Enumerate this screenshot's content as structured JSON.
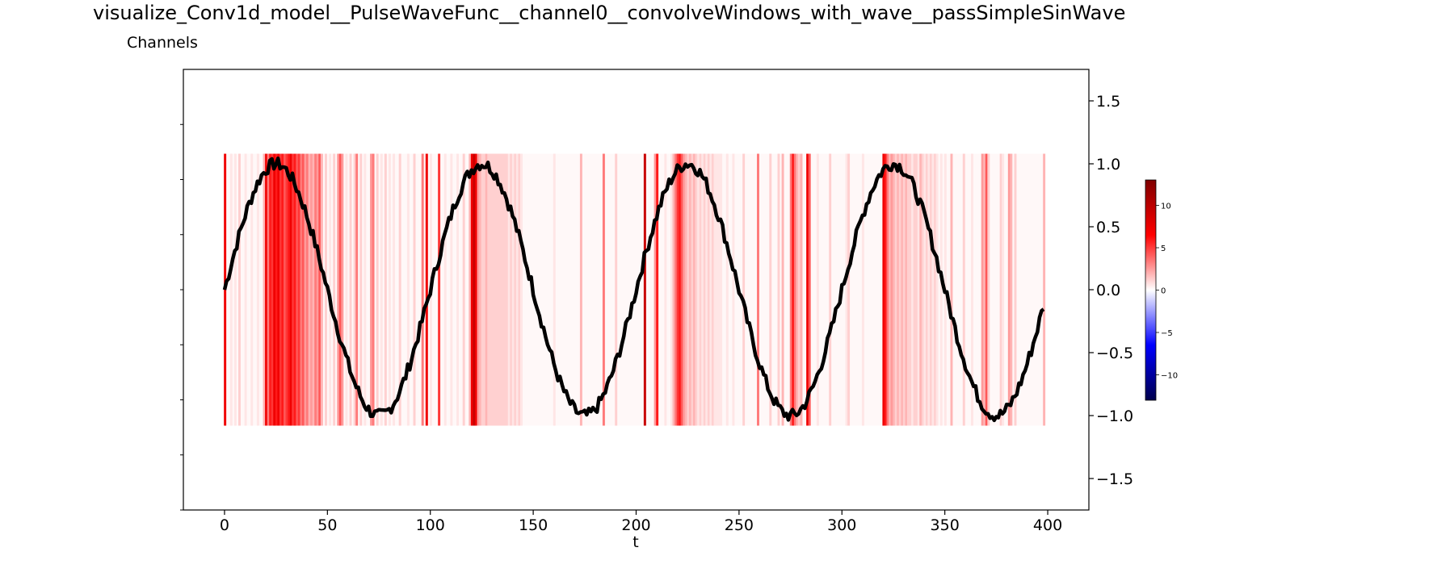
{
  "title": "visualize_Conv1d_model__PulseWaveFunc__channel0__convolveWindows_with_wave__passSimpleSinWave",
  "subtitle": "Channels",
  "chart_data": {
    "type": "line",
    "xlabel": "t",
    "ylabel": "",
    "xlim": [
      -20,
      420
    ],
    "ylim": [
      -1.75,
      1.75
    ],
    "x_ticks": [
      0,
      50,
      100,
      150,
      200,
      250,
      300,
      350,
      400
    ],
    "x_tick_labels": [
      "0",
      "50",
      "100",
      "150",
      "200",
      "250",
      "300",
      "350",
      "400"
    ],
    "y_ticks": [
      1.5,
      1.0,
      0.5,
      0.0,
      -0.5,
      -1.0,
      -1.5
    ],
    "y_tick_labels": [
      "1.5",
      "1.0",
      "0.5",
      "0.0",
      "−0.5",
      "−1.0",
      "−1.5"
    ],
    "y_axis_side": "right",
    "grid": false,
    "line_color": "#000000",
    "signal": {
      "t_start": 0,
      "t_end": 398,
      "period": 100,
      "amplitude": 1.0,
      "noise_amplitude": 0.05
    },
    "heatmap": {
      "colormap": "seismic",
      "y_range": [
        -1.08,
        1.08
      ],
      "x_range": [
        0,
        398
      ],
      "colorbar_ticks": [
        10,
        5,
        0,
        -5,
        -10
      ],
      "colorbar_tick_labels": [
        "10",
        "5",
        "0",
        "−5",
        "−10"
      ],
      "colorbar_range": [
        -13,
        13
      ],
      "activations": [
        [
          0,
          9
        ],
        [
          3,
          1
        ],
        [
          5,
          1
        ],
        [
          7,
          2
        ],
        [
          10,
          1
        ],
        [
          13,
          1
        ],
        [
          16,
          1
        ],
        [
          19,
          3
        ],
        [
          20,
          9
        ],
        [
          21,
          5
        ],
        [
          22,
          8
        ],
        [
          23,
          7
        ],
        [
          24,
          9
        ],
        [
          25,
          8
        ],
        [
          26,
          9
        ],
        [
          27,
          7
        ],
        [
          28,
          8
        ],
        [
          29,
          6
        ],
        [
          30,
          7
        ],
        [
          31,
          8
        ],
        [
          32,
          9
        ],
        [
          33,
          7
        ],
        [
          34,
          8
        ],
        [
          35,
          6
        ],
        [
          36,
          7
        ],
        [
          37,
          5
        ],
        [
          38,
          6
        ],
        [
          39,
          4
        ],
        [
          40,
          5
        ],
        [
          41,
          3
        ],
        [
          42,
          4
        ],
        [
          43,
          3
        ],
        [
          44,
          5
        ],
        [
          45,
          4
        ],
        [
          46,
          6
        ],
        [
          47,
          3
        ],
        [
          49,
          2
        ],
        [
          51,
          1
        ],
        [
          53,
          2
        ],
        [
          55,
          4
        ],
        [
          56,
          6
        ],
        [
          57,
          4
        ],
        [
          59,
          1
        ],
        [
          61,
          2
        ],
        [
          63,
          2
        ],
        [
          64,
          5
        ],
        [
          66,
          2
        ],
        [
          68,
          1
        ],
        [
          71,
          4
        ],
        [
          72,
          5
        ],
        [
          74,
          2
        ],
        [
          76,
          1
        ],
        [
          78,
          2
        ],
        [
          80,
          1
        ],
        [
          82,
          1
        ],
        [
          85,
          2
        ],
        [
          89,
          1
        ],
        [
          92,
          2
        ],
        [
          96,
          5
        ],
        [
          98,
          9
        ],
        [
          100,
          1
        ],
        [
          104,
          7
        ],
        [
          107,
          1
        ],
        [
          110,
          1
        ],
        [
          113,
          1
        ],
        [
          116,
          2
        ],
        [
          119,
          3
        ],
        [
          120,
          9
        ],
        [
          121,
          10
        ],
        [
          122,
          9
        ],
        [
          123,
          4
        ],
        [
          124,
          3
        ],
        [
          125,
          2
        ],
        [
          126,
          2
        ],
        [
          127,
          3
        ],
        [
          128,
          2
        ],
        [
          129,
          2
        ],
        [
          130,
          2
        ],
        [
          131,
          2
        ],
        [
          132,
          2
        ],
        [
          133,
          2
        ],
        [
          134,
          2
        ],
        [
          135,
          2
        ],
        [
          136,
          2
        ],
        [
          137,
          2
        ],
        [
          138,
          1
        ],
        [
          139,
          2
        ],
        [
          140,
          1
        ],
        [
          141,
          2
        ],
        [
          142,
          1
        ],
        [
          143,
          2
        ],
        [
          144,
          1
        ],
        [
          160,
          1
        ],
        [
          173,
          3
        ],
        [
          184,
          5
        ],
        [
          190,
          2
        ],
        [
          204,
          10
        ],
        [
          209,
          4
        ],
        [
          210,
          8
        ],
        [
          214,
          1
        ],
        [
          217,
          1
        ],
        [
          218,
          3
        ],
        [
          219,
          5
        ],
        [
          220,
          7
        ],
        [
          221,
          8
        ],
        [
          222,
          6
        ],
        [
          223,
          4
        ],
        [
          224,
          3
        ],
        [
          225,
          2
        ],
        [
          226,
          3
        ],
        [
          227,
          2
        ],
        [
          228,
          3
        ],
        [
          229,
          2
        ],
        [
          230,
          1
        ],
        [
          231,
          2
        ],
        [
          232,
          1
        ],
        [
          233,
          2
        ],
        [
          234,
          1
        ],
        [
          235,
          2
        ],
        [
          236,
          1
        ],
        [
          237,
          2
        ],
        [
          238,
          1
        ],
        [
          239,
          1
        ],
        [
          240,
          1
        ],
        [
          241,
          1
        ],
        [
          244,
          1
        ],
        [
          247,
          1
        ],
        [
          252,
          2
        ],
        [
          259,
          5
        ],
        [
          265,
          2
        ],
        [
          269,
          2
        ],
        [
          271,
          3
        ],
        [
          275,
          5
        ],
        [
          276,
          8
        ],
        [
          277,
          5
        ],
        [
          278,
          3
        ],
        [
          279,
          2
        ],
        [
          280,
          3
        ],
        [
          283,
          9
        ],
        [
          284,
          6
        ],
        [
          288,
          1
        ],
        [
          294,
          2
        ],
        [
          302,
          1
        ],
        [
          303,
          2
        ],
        [
          310,
          1
        ],
        [
          320,
          9
        ],
        [
          321,
          8
        ],
        [
          322,
          5
        ],
        [
          323,
          3
        ],
        [
          324,
          4
        ],
        [
          325,
          3
        ],
        [
          326,
          2
        ],
        [
          327,
          3
        ],
        [
          328,
          2
        ],
        [
          329,
          3
        ],
        [
          330,
          2
        ],
        [
          331,
          3
        ],
        [
          332,
          2
        ],
        [
          333,
          2
        ],
        [
          334,
          1
        ],
        [
          335,
          2
        ],
        [
          336,
          2
        ],
        [
          337,
          1
        ],
        [
          338,
          3
        ],
        [
          339,
          2
        ],
        [
          340,
          1
        ],
        [
          341,
          2
        ],
        [
          342,
          1
        ],
        [
          343,
          2
        ],
        [
          344,
          1
        ],
        [
          345,
          2
        ],
        [
          346,
          1
        ],
        [
          348,
          1
        ],
        [
          350,
          1
        ],
        [
          353,
          3
        ],
        [
          359,
          2
        ],
        [
          363,
          1
        ],
        [
          368,
          4
        ],
        [
          369,
          3
        ],
        [
          370,
          6
        ],
        [
          371,
          2
        ],
        [
          377,
          2
        ],
        [
          378,
          1
        ],
        [
          381,
          4
        ],
        [
          382,
          3
        ],
        [
          384,
          2
        ],
        [
          398,
          3
        ]
      ]
    }
  }
}
